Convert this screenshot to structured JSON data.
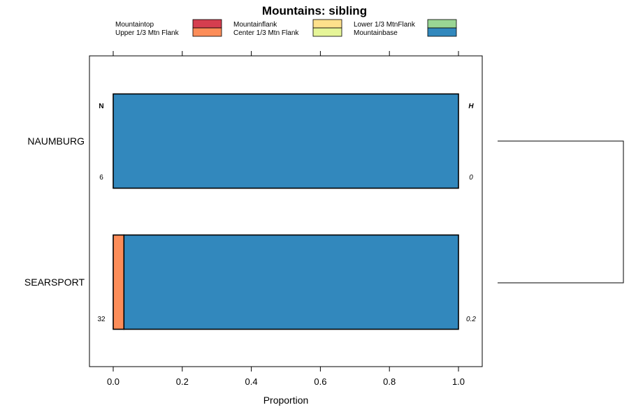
{
  "chart_data": {
    "type": "bar",
    "orientation": "horizontal",
    "stacked": true,
    "title": "Mountains: sibling",
    "xlabel": "Proportion",
    "ylabel": "",
    "xlim": [
      0,
      1
    ],
    "x_ticks": [
      "0.0",
      "0.2",
      "0.4",
      "0.6",
      "0.8",
      "1.0"
    ],
    "categories": [
      "NAUMBURG",
      "SEARSPORT"
    ],
    "series": [
      {
        "name": "Mountaintop",
        "color": "#d53e4f",
        "values": [
          0,
          0
        ]
      },
      {
        "name": "Upper 1/3 Mtn Flank",
        "color": "#fc8d59",
        "values": [
          0,
          0.031
        ]
      },
      {
        "name": "Mountainflank",
        "color": "#fee08b",
        "values": [
          0,
          0
        ]
      },
      {
        "name": "Center 1/3 Mtn Flank",
        "color": "#e6f598",
        "values": [
          0,
          0
        ]
      },
      {
        "name": "Lower 1/3 MtnFlank",
        "color": "#99d594",
        "values": [
          0,
          0
        ]
      },
      {
        "name": "Mountainbase",
        "color": "#3288bd",
        "values": [
          1.0,
          0.969
        ]
      }
    ],
    "left_column": {
      "header": "N",
      "values": [
        "6",
        "32"
      ]
    },
    "right_column": {
      "header": "H",
      "values": [
        "0",
        "0.2"
      ]
    },
    "dendrogram": "joins NAUMBURG and SEARSPORT"
  }
}
